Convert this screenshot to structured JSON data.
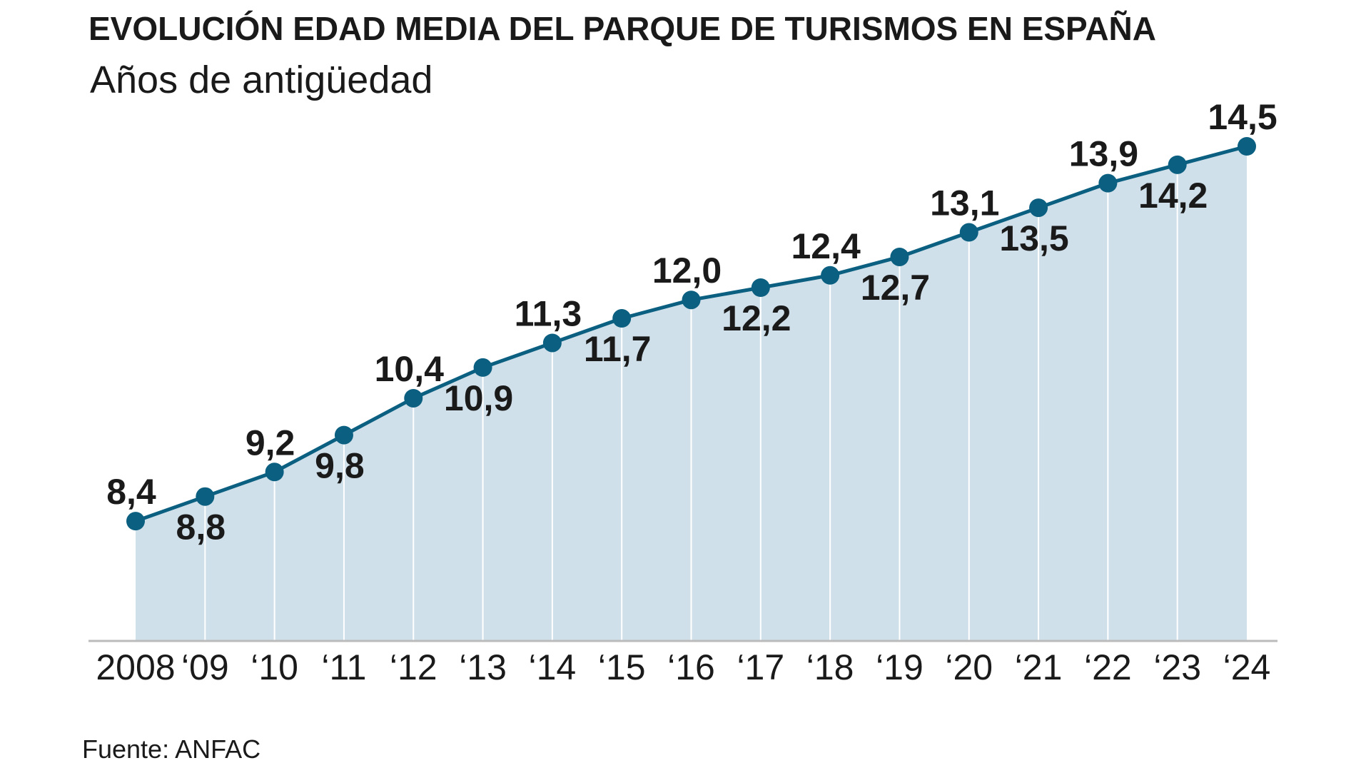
{
  "chart_data": {
    "type": "area",
    "title": "EVOLUCIÓN EDAD MEDIA DEL PARQUE DE TURISMOS EN ESPAÑA",
    "subtitle": "Años de antigüedad",
    "source": "Fuente: ANFAC",
    "categories": [
      "2008",
      "‘09",
      "‘10",
      "‘11",
      "‘12",
      "‘13",
      "‘14",
      "‘15",
      "‘16",
      "‘17",
      "‘18",
      "‘19",
      "‘20",
      "‘21",
      "‘22",
      "‘23",
      "‘24"
    ],
    "values": [
      8.4,
      8.8,
      9.2,
      9.8,
      10.4,
      10.9,
      11.3,
      11.7,
      12.0,
      12.2,
      12.4,
      12.7,
      13.1,
      13.5,
      13.9,
      14.2,
      14.5
    ],
    "data_labels": [
      "8,4",
      "8,8",
      "9,2",
      "9,8",
      "10,4",
      "10,9",
      "11,3",
      "11,7",
      "12,0",
      "12,2",
      "12,4",
      "12,7",
      "13,1",
      "13,5",
      "13,9",
      "14,2",
      "14,5"
    ],
    "ylim": [
      6.45,
      14.5
    ],
    "grid": false,
    "colors": {
      "line": "#0b5f80",
      "fill": "#d0e0ea",
      "axis": "#bbbbbb"
    }
  }
}
